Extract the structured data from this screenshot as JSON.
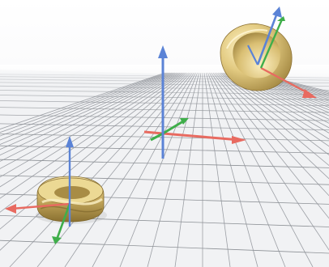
{
  "viewport": {
    "type": "3d-viewport",
    "background_color": "#ffffff",
    "floor_grid": {
      "visible": true,
      "line_color": "#8d9196",
      "floor_color": "#f1f2f4"
    }
  },
  "axis_colors": {
    "x": "#e86a60",
    "y": "#3fae4a",
    "z": "#5b83d6"
  },
  "objects": [
    {
      "name": "world-origin-gizmo",
      "kind": "transform-gizmo"
    },
    {
      "name": "bowl-object",
      "kind": "gold-mesh",
      "material_color": "#d9c27a"
    },
    {
      "name": "ring-object",
      "kind": "gold-mesh",
      "material_color": "#cdb774"
    }
  ]
}
